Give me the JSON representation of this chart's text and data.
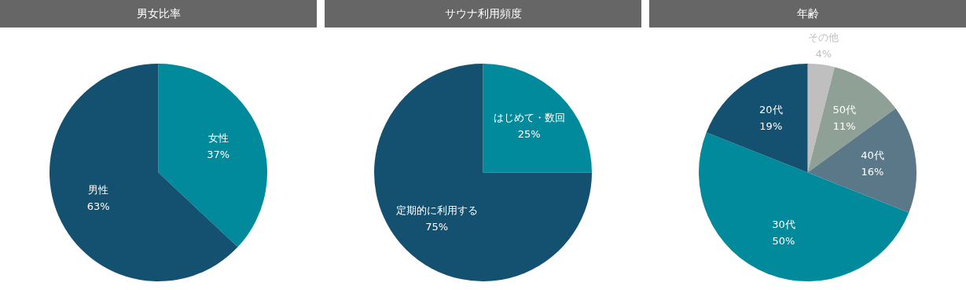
{
  "chart_data": [
    {
      "type": "pie",
      "title": "男女比率",
      "categories": [
        "女性",
        "男性"
      ],
      "values": [
        37,
        63
      ],
      "value_labels": [
        "37%",
        "63%"
      ],
      "colors": [
        "#008a9b",
        "#14506f"
      ]
    },
    {
      "type": "pie",
      "title": "サウナ利用頻度",
      "categories": [
        "はじめて・数回",
        "定期的に利用する"
      ],
      "values": [
        25,
        75
      ],
      "value_labels": [
        "25%",
        "75%"
      ],
      "colors": [
        "#008a9b",
        "#14506f"
      ]
    },
    {
      "type": "pie",
      "title": "年齢",
      "categories": [
        "その他",
        "50代",
        "40代",
        "30代",
        "20代"
      ],
      "values": [
        4,
        11,
        16,
        50,
        19
      ],
      "value_labels": [
        "4%",
        "11%",
        "16%",
        "50%",
        "19%"
      ],
      "colors": [
        "#bfbfbf",
        "#8fa197",
        "#5b7888",
        "#008a9b",
        "#14506f"
      ]
    }
  ]
}
